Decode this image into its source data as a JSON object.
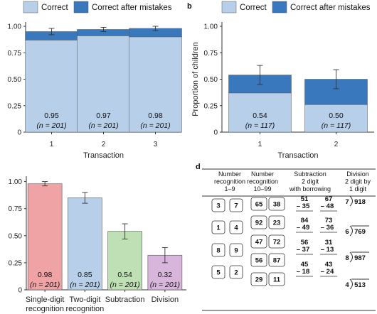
{
  "panel_labels": {
    "b": "b",
    "d": "d"
  },
  "chart_data": [
    {
      "id": "a",
      "type": "bar",
      "stacked": true,
      "categories": [
        "1",
        "2",
        "3"
      ],
      "xlabel": "Transaction",
      "ylabel": "",
      "ylim": [
        0,
        1
      ],
      "yticks": [
        "0",
        "0.25",
        "0.50",
        "0.75",
        "1.00"
      ],
      "legend": [
        "Correct",
        "Correct after mistakes"
      ],
      "series": [
        {
          "name": "Correct",
          "values": [
            0.87,
            0.91,
            0.9
          ],
          "color": "#b7cfe8"
        },
        {
          "name": "Correct after mistakes",
          "values": [
            0.08,
            0.06,
            0.08
          ],
          "color": "#3a78bd"
        }
      ],
      "error": [
        0.03,
        0.02,
        0.02
      ],
      "labels": [
        {
          "value": "0.95",
          "n": "(n = 201)"
        },
        {
          "value": "0.97",
          "n": "(n = 201)"
        },
        {
          "value": "0.98",
          "n": "(n = 201)"
        }
      ]
    },
    {
      "id": "b",
      "type": "bar",
      "stacked": true,
      "categories": [
        "1",
        "2"
      ],
      "xlabel": "Transaction",
      "ylabel": "Proportion of children",
      "ylim": [
        0,
        1
      ],
      "yticks": [
        "0",
        "0.25",
        "0.50",
        "0.75",
        "1.00"
      ],
      "legend": [
        "Correct",
        "Correct after mistakes"
      ],
      "series": [
        {
          "name": "Correct",
          "values": [
            0.37,
            0.26
          ],
          "color": "#b7cfe8"
        },
        {
          "name": "Correct after mistakes",
          "values": [
            0.17,
            0.24
          ],
          "color": "#3a78bd"
        }
      ],
      "error": [
        0.09,
        0.09
      ],
      "labels": [
        {
          "value": "0.54",
          "n": "(n = 117)"
        },
        {
          "value": "0.50",
          "n": "(n = 117)"
        }
      ]
    },
    {
      "id": "c",
      "type": "bar",
      "categories": [
        "Single-digit|recognition",
        "Two-digit|recognition",
        "Subtraction",
        "Division"
      ],
      "xlabel": "",
      "ylabel": "",
      "ylim": [
        0,
        1.05
      ],
      "yticks": [
        "0",
        "0.25",
        "0.50",
        "0.75",
        "1.00"
      ],
      "values": [
        0.98,
        0.85,
        0.54,
        0.32
      ],
      "colors": [
        "#f0a3a5",
        "#b7cfe8",
        "#bfe0b5",
        "#d8b6dc"
      ],
      "error": [
        0.02,
        0.05,
        0.07,
        0.07
      ],
      "labels": [
        {
          "value": "0.98",
          "n": "(n = 201)"
        },
        {
          "value": "0.85",
          "n": "(n = 201)"
        },
        {
          "value": "0.54",
          "n": "(n = 201)"
        },
        {
          "value": "0.32",
          "n": "(n = 201)"
        }
      ]
    },
    {
      "id": "d",
      "type": "table",
      "headers": [
        [
          "Number",
          "recognition",
          "1–9"
        ],
        [
          "Number",
          "recognition",
          "10–99"
        ],
        [
          "Subtraction",
          "2 digit",
          "with borrowing"
        ],
        [
          "Division",
          "2 digit by",
          "1 digit"
        ]
      ],
      "single_digit": [
        [
          "3",
          "7"
        ],
        [
          "1",
          "4"
        ],
        [
          "8",
          "9"
        ],
        [
          "5",
          "2"
        ]
      ],
      "two_digit": [
        [
          "65",
          "38"
        ],
        [
          "92",
          "23"
        ],
        [
          "47",
          "72"
        ],
        [
          "56",
          "87"
        ],
        [
          "29",
          "11"
        ]
      ],
      "subtraction": [
        [
          [
            "51",
            "– 35"
          ],
          [
            "67",
            "– 48"
          ]
        ],
        [
          [
            "84",
            "– 49"
          ],
          [
            "73",
            "– 36"
          ]
        ],
        [
          [
            "56",
            "– 37"
          ],
          [
            "31",
            "– 13"
          ]
        ],
        [
          [
            "45",
            "– 18"
          ],
          [
            "43",
            "– 24"
          ]
        ]
      ],
      "division": [
        [
          "7",
          "918"
        ],
        [
          "6",
          "769"
        ],
        [
          "8",
          "987"
        ],
        [
          "4",
          "513"
        ]
      ]
    }
  ]
}
